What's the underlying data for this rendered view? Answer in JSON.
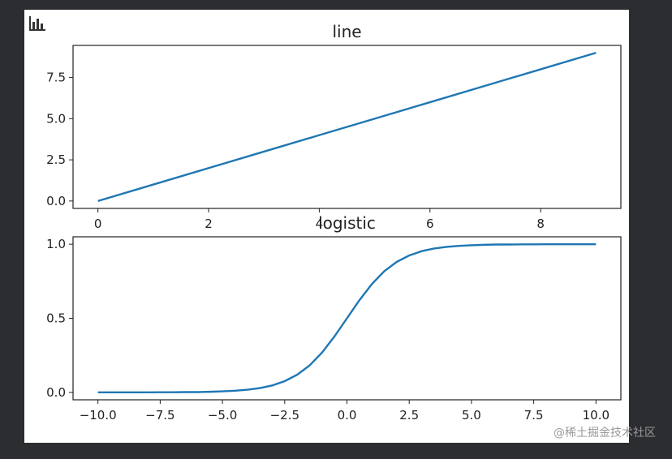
{
  "chart_data": [
    {
      "type": "line",
      "title": "line",
      "x": [
        0,
        1,
        2,
        3,
        4,
        5,
        6,
        7,
        8,
        9
      ],
      "values": [
        0,
        1,
        2,
        3,
        4,
        5,
        6,
        7,
        8,
        9
      ],
      "color": "#1f77b4",
      "xlim": [
        -0.45,
        9.45
      ],
      "ylim": [
        -0.45,
        9.45
      ],
      "xticks": [
        0,
        2,
        4,
        6,
        8
      ],
      "yticks": [
        {
          "value": 0,
          "label": "0.0"
        },
        2.5,
        {
          "value": 5,
          "label": "5.0"
        },
        7.5
      ]
    },
    {
      "type": "line",
      "title": "logistic",
      "x": [
        -10,
        -9.5,
        -9,
        -8.5,
        -8,
        -7.5,
        -7,
        -6.5,
        -6,
        -5.5,
        -5,
        -4.5,
        -4,
        -3.5,
        -3,
        -2.5,
        -2,
        -1.5,
        -1,
        -0.5,
        0,
        0.5,
        1,
        1.5,
        2,
        2.5,
        3,
        3.5,
        4,
        4.5,
        5,
        5.5,
        6,
        6.5,
        7,
        7.5,
        8,
        8.5,
        9,
        9.5,
        10
      ],
      "values": [
        0,
        0,
        0,
        0,
        0,
        0.001,
        0.001,
        0.002,
        0.002,
        0.004,
        0.007,
        0.011,
        0.018,
        0.029,
        0.047,
        0.076,
        0.119,
        0.182,
        0.269,
        0.378,
        0.5,
        0.622,
        0.731,
        0.818,
        0.881,
        0.924,
        0.953,
        0.971,
        0.982,
        0.989,
        0.993,
        0.996,
        0.998,
        0.998,
        0.999,
        0.999,
        1,
        1,
        1,
        1,
        1
      ],
      "color": "#1f77b4",
      "xlim": [
        -11,
        11
      ],
      "ylim": [
        -0.05,
        1.05
      ],
      "xticks": [
        {
          "value": -10,
          "label": "−10.0"
        },
        {
          "value": -7.5,
          "label": "−7.5"
        },
        {
          "value": -5,
          "label": "−5.0"
        },
        {
          "value": -2.5,
          "label": "−2.5"
        },
        {
          "value": 0,
          "label": "0.0"
        },
        2.5,
        {
          "value": 5,
          "label": "5.0"
        },
        7.5,
        {
          "value": 10,
          "label": "10.0"
        }
      ],
      "yticks": [
        {
          "value": 0,
          "label": "0.0"
        },
        0.5,
        {
          "value": 1,
          "label": "1.0"
        }
      ]
    }
  ],
  "watermark": "@稀土掘金技术社区"
}
